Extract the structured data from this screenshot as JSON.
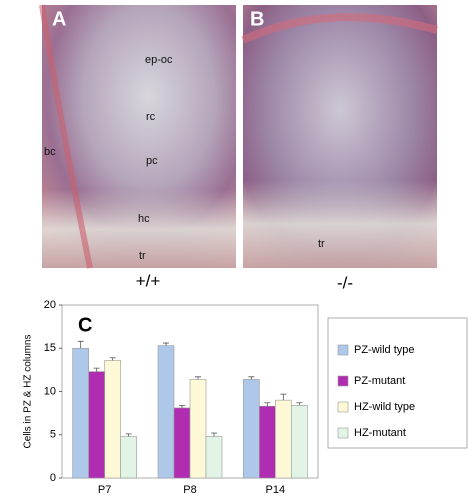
{
  "panels": [
    {
      "label": "A",
      "genotype": "+/+",
      "annotations": [
        "ep-oc",
        "rc",
        "pc",
        "hc",
        "tr",
        "bc"
      ]
    },
    {
      "label": "B",
      "genotype": "-/-",
      "annotations": [
        "tr"
      ]
    }
  ],
  "chart_data": {
    "type": "bar",
    "panel_label": "C",
    "y_label": "Cells in PZ & HZ columns",
    "categories": [
      "P7",
      "P8",
      "P14"
    ],
    "series": [
      {
        "name": "PZ-wild type",
        "color": "#aec8ea",
        "values": [
          15,
          15.3,
          11.4
        ],
        "errors": [
          0.8,
          0.3,
          0.3
        ]
      },
      {
        "name": "PZ-mutant",
        "color": "#b02cb0",
        "values": [
          12.3,
          8.1,
          8.3
        ],
        "errors": [
          0.4,
          0.3,
          0.4
        ]
      },
      {
        "name": "HZ-wild type",
        "color": "#fdf8d6",
        "values": [
          13.6,
          11.4,
          9.0
        ],
        "errors": [
          0.3,
          0.3,
          0.7
        ]
      },
      {
        "name": "HZ-mutant",
        "color": "#e2f4e6",
        "values": [
          4.8,
          4.8,
          8.4
        ],
        "errors": [
          0.3,
          0.4,
          0.3
        ]
      }
    ],
    "ylim": [
      0,
      20
    ],
    "yticks": [
      0,
      5,
      10,
      15,
      20
    ]
  }
}
